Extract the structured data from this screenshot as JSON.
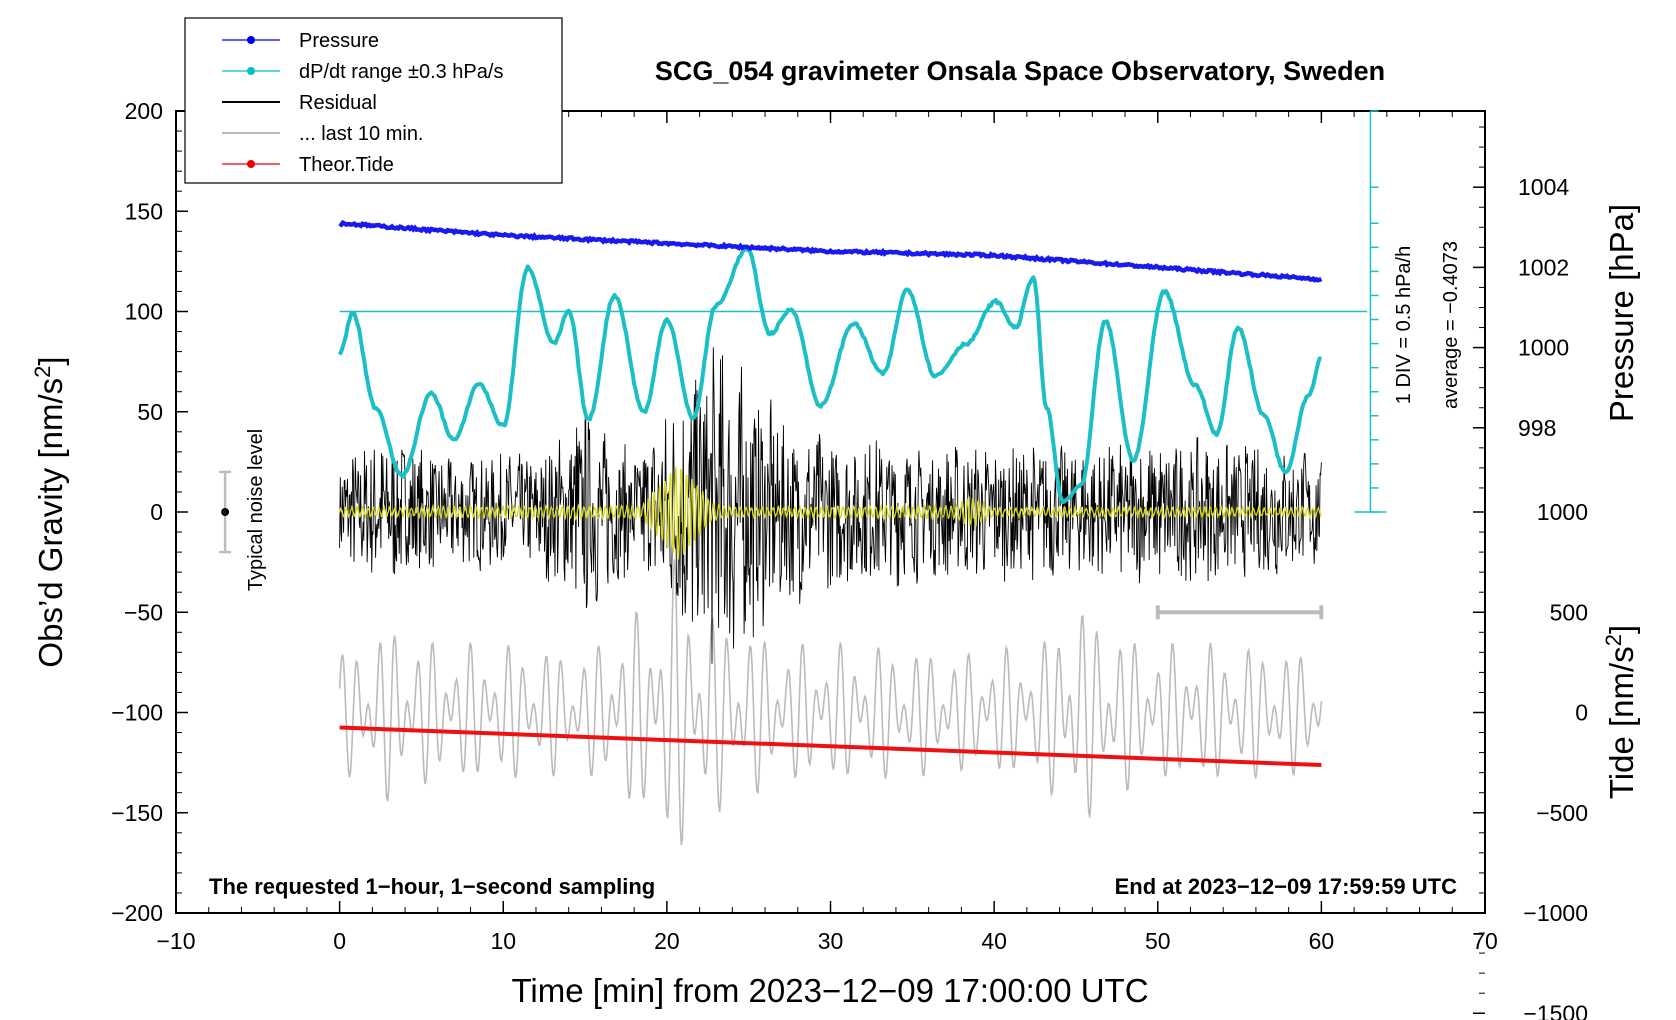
{
  "chart_data": {
    "type": "line",
    "title": "SCG_054 gravimeter Onsala Space Observatory, Sweden",
    "xlabel": "Time [min] from 2023−12−09 17:00:00 UTC",
    "ylabel_left": "Obs’d Gravity [nm/s",
    "ylabel_left_sup": "2",
    "ylabel_left_end": "]",
    "ylabel_pressure": "Pressure [hPa]",
    "ylabel_tide": "Tide [nm/s",
    "ylabel_tide_sup": "2",
    "ylabel_tide_end": "]",
    "xlim": [
      -10,
      70
    ],
    "ylim": [
      -200,
      200
    ],
    "x_ticks": [
      {
        "v": -10,
        "label": "−10"
      },
      {
        "v": 0,
        "label": "0"
      },
      {
        "v": 10,
        "label": "10"
      },
      {
        "v": 20,
        "label": "20"
      },
      {
        "v": 30,
        "label": "30"
      },
      {
        "v": 40,
        "label": "40"
      },
      {
        "v": 50,
        "label": "50"
      },
      {
        "v": 60,
        "label": "60"
      },
      {
        "v": 70,
        "label": "70"
      }
    ],
    "y_ticks": [
      {
        "v": 200,
        "label": "200"
      },
      {
        "v": 150,
        "label": "150"
      },
      {
        "v": 100,
        "label": "100"
      },
      {
        "v": 50,
        "label": "50"
      },
      {
        "v": 0,
        "label": "0"
      },
      {
        "v": -50,
        "label": "−50"
      },
      {
        "v": -100,
        "label": "−100"
      },
      {
        "v": -150,
        "label": "−150"
      },
      {
        "v": -200,
        "label": "−200"
      }
    ],
    "pressure_axis": {
      "ticks": [
        {
          "v": 1004,
          "label": "1004"
        },
        {
          "v": 1002,
          "label": "1002"
        },
        {
          "v": 1000,
          "label": "1000"
        },
        {
          "v": 998,
          "label": "998"
        }
      ],
      "scale_gravity_at_1004": 162,
      "nm_s2_per_hPa": 20
    },
    "tide_axis": {
      "ticks": [
        {
          "v": 1000,
          "label": "1000"
        },
        {
          "v": 500,
          "label": "500"
        },
        {
          "v": 0,
          "label": "0"
        },
        {
          "v": -500,
          "label": "−500"
        },
        {
          "v": -1000,
          "label": "−1000"
        },
        {
          "v": -1500,
          "label": "−1500"
        }
      ],
      "gravity_at_0": -100,
      "nm_s2_per_unit": 0.1
    },
    "legend": [
      {
        "label": "Pressure",
        "color": "#0000ee",
        "marker": true
      },
      {
        "label": "dP/dt range ±0.3 hPa/s",
        "color": "#00c0c0",
        "marker": true
      },
      {
        "label": "Residual",
        "color": "#000000",
        "marker": false
      },
      {
        "label": "... last 10 min.",
        "color": "#bbbbbb",
        "marker": false
      },
      {
        "label": "Theor.Tide",
        "color": "#ee0000",
        "marker": true
      }
    ],
    "series": [
      {
        "name": "Pressure",
        "color": "#1a1aee",
        "x": [
          0,
          10,
          20,
          30,
          40,
          50,
          60
        ],
        "values": [
          1003.1,
          1002.8,
          1002.6,
          1002.4,
          1002.3,
          1002.0,
          1001.7
        ]
      },
      {
        "name": "dP/dt",
        "color": "#1bbfc4",
        "x": [
          0,
          0.8,
          2.2,
          3.8,
          5.6,
          7.0,
          8.5,
          10.0,
          11.5,
          13.1,
          14.0,
          15.2,
          16.8,
          18.6,
          20.0,
          21.6,
          23.0,
          24.9,
          26.3,
          27.6,
          29.4,
          31.4,
          33.2,
          34.7,
          36.4,
          38.3,
          40.1,
          41.3,
          42.4,
          43.2,
          44.2,
          45.3,
          46.8,
          48.5,
          50.4,
          52.3,
          53.6,
          54.9,
          56.5,
          57.8,
          59.2,
          60.0
        ],
        "values": [
          79,
          99,
          52,
          18,
          59,
          36,
          64,
          43,
          122,
          84,
          100,
          46,
          108,
          50,
          96,
          47,
          103,
          131,
          89,
          101,
          53,
          94,
          69,
          111,
          68,
          84,
          105,
          92,
          117,
          52,
          5,
          13,
          95,
          26,
          110,
          63,
          39,
          92,
          48,
          20,
          58,
          77
        ]
      },
      {
        "name": "Residual",
        "color": "#000000",
        "x": [
          0,
          3,
          6,
          9,
          12,
          15,
          18,
          20,
          22,
          23.5,
          25,
          27,
          30,
          33,
          36,
          39,
          42,
          45,
          48,
          51,
          54,
          57,
          60
        ],
        "values": [
          30,
          40,
          30,
          30,
          30,
          55,
          30,
          55,
          80,
          90,
          70,
          50,
          40,
          40,
          35,
          35,
          35,
          35,
          35,
          40,
          35,
          35,
          30
        ]
      },
      {
        "name": "... last 10 min.",
        "color": "#bbbbbb",
        "x": [
          0,
          3,
          6,
          10,
          15,
          19.5,
          20.5,
          22,
          27,
          32,
          38,
          43,
          44.5,
          49,
          54,
          60
        ],
        "values": [
          30,
          45,
          35,
          35,
          30,
          60,
          78,
          55,
          35,
          35,
          30,
          35,
          60,
          35,
          35,
          30
        ]
      },
      {
        "name": "Theor.Tide",
        "color": "#ee1111",
        "x": [
          0,
          60
        ],
        "values": [
          -75,
          -262
        ]
      },
      {
        "name": "Residual (yellow)",
        "color": "#d8d820",
        "x": [
          0,
          18.5,
          20.7,
          22.8,
          24.0,
          37.5,
          38.7,
          40.0,
          60
        ],
        "values": [
          2,
          3,
          24,
          4,
          2,
          3,
          7,
          2,
          2
        ]
      }
    ],
    "dp_ref_line": 100,
    "dp_scale_axis_x": 63.0,
    "dp_scale_ticks": [
      0,
      12,
      24,
      36,
      48,
      60,
      72,
      84,
      96,
      108,
      120,
      132,
      144,
      162,
      200
    ],
    "noise_bar": {
      "x": -7,
      "center": 0,
      "halfrange": 20
    },
    "time_bar": {
      "x_from": 50,
      "x_to": 60,
      "y": -50
    }
  },
  "annotations": {
    "noise_label": "Typical noise level",
    "scale_label_1": "1 DIV = 0.5 hPa/h",
    "scale_label_2": "average = −0.4073",
    "bottom_left": "The requested 1−hour, 1−second sampling",
    "bottom_right": "End at 2023−12−09 17:59:59 UTC"
  }
}
